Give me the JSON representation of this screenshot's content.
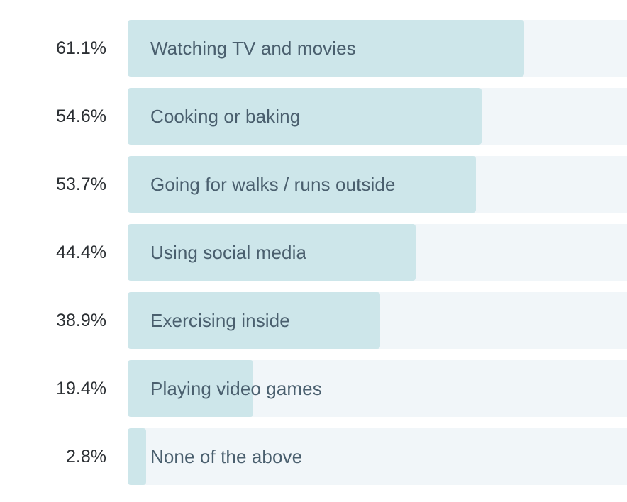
{
  "chart_data": {
    "type": "bar",
    "orientation": "horizontal",
    "categories": [
      "Watching TV and movies",
      "Cooking or baking",
      "Going for walks / runs outside",
      "Using social media",
      "Exercising inside",
      "Playing video games",
      "None of the above"
    ],
    "values": [
      61.1,
      54.6,
      53.7,
      44.4,
      38.9,
      19.4,
      2.8
    ],
    "value_labels": [
      "61.1%",
      "54.6%",
      "53.7%",
      "44.4%",
      "38.9%",
      "19.4%",
      "2.8%"
    ],
    "unit": "%",
    "xlim": [
      0,
      77
    ],
    "grid": false,
    "legend": "none",
    "colors": {
      "bar": "#cde6ea",
      "track": "#f1f6f9",
      "label_text": "#4a5f6e",
      "value_text": "#2b2f33"
    }
  }
}
